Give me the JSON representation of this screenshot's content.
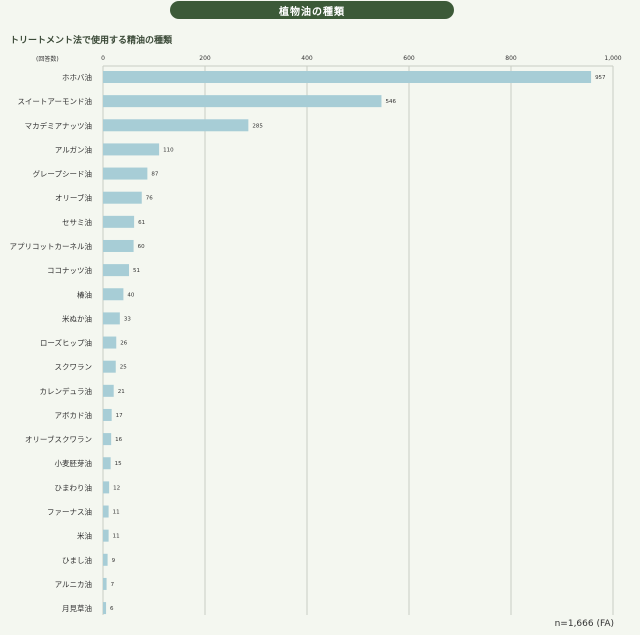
{
  "header": {
    "title": "植物油の種類"
  },
  "subtitle": "トリートメント法で使用する精油の種類",
  "unit_label": "(回答数)",
  "footnote": "n=1,666 (FA)",
  "colors": {
    "bar": "#a7cdd6",
    "grid": "#c9cdc4",
    "title_bg": "#3c5a38"
  },
  "chart_data": {
    "type": "bar",
    "orientation": "horizontal",
    "title": "",
    "xlabel": "",
    "ylabel": "",
    "xlim": [
      0,
      1000
    ],
    "ticks": [
      0,
      200,
      400,
      600,
      800,
      1000
    ],
    "tick_labels": [
      "0",
      "200",
      "400",
      "600",
      "800",
      "1,000"
    ],
    "categories": [
      "ホホバ油",
      "スイートアーモンド油",
      "マカデミアナッツ油",
      "アルガン油",
      "グレープシード油",
      "オリーブ油",
      "セサミ油",
      "アプリコットカーネル油",
      "ココナッツ油",
      "椿油",
      "米ぬか油",
      "ローズヒップ油",
      "スクワラン",
      "カレンデュラ油",
      "アボカド油",
      "オリーブスクワラン",
      "小麦胚芽油",
      "ひまわり油",
      "ファーナス油",
      "米油",
      "ひまし油",
      "アルニカ油",
      "月見草油"
    ],
    "values": [
      957,
      546,
      285,
      110,
      87,
      76,
      61,
      60,
      51,
      40,
      33,
      26,
      25,
      21,
      17,
      16,
      15,
      12,
      11,
      11,
      9,
      7,
      6
    ],
    "grid": true,
    "legend": "none"
  }
}
